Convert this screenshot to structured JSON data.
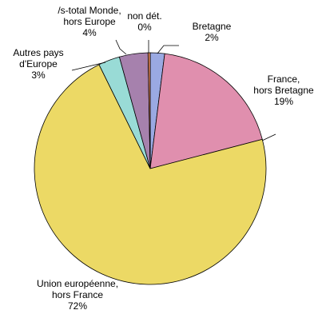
{
  "chart_data": {
    "type": "pie",
    "title": "",
    "slices": [
      {
        "lines": [
          "Bretagne",
          "2%"
        ],
        "value": 2,
        "color": "#9aa9e2"
      },
      {
        "lines": [
          "France,",
          "hors Bretagne",
          "19%"
        ],
        "value": 19,
        "color": "#e08fae"
      },
      {
        "lines": [
          "Union européenne,",
          "hors France",
          "72%"
        ],
        "value": 72,
        "color": "#ecd965"
      },
      {
        "lines": [
          "Autres pays",
          "d'Europe",
          "3%"
        ],
        "value": 3,
        "color": "#99dbd6"
      },
      {
        "lines": [
          "/s-total Monde,",
          "hors Europe",
          "4%"
        ],
        "value": 4,
        "color": "#a681ad"
      },
      {
        "lines": [
          "non dét.",
          "0%"
        ],
        "value": 0.3,
        "color": "#e88a5a"
      }
    ]
  }
}
